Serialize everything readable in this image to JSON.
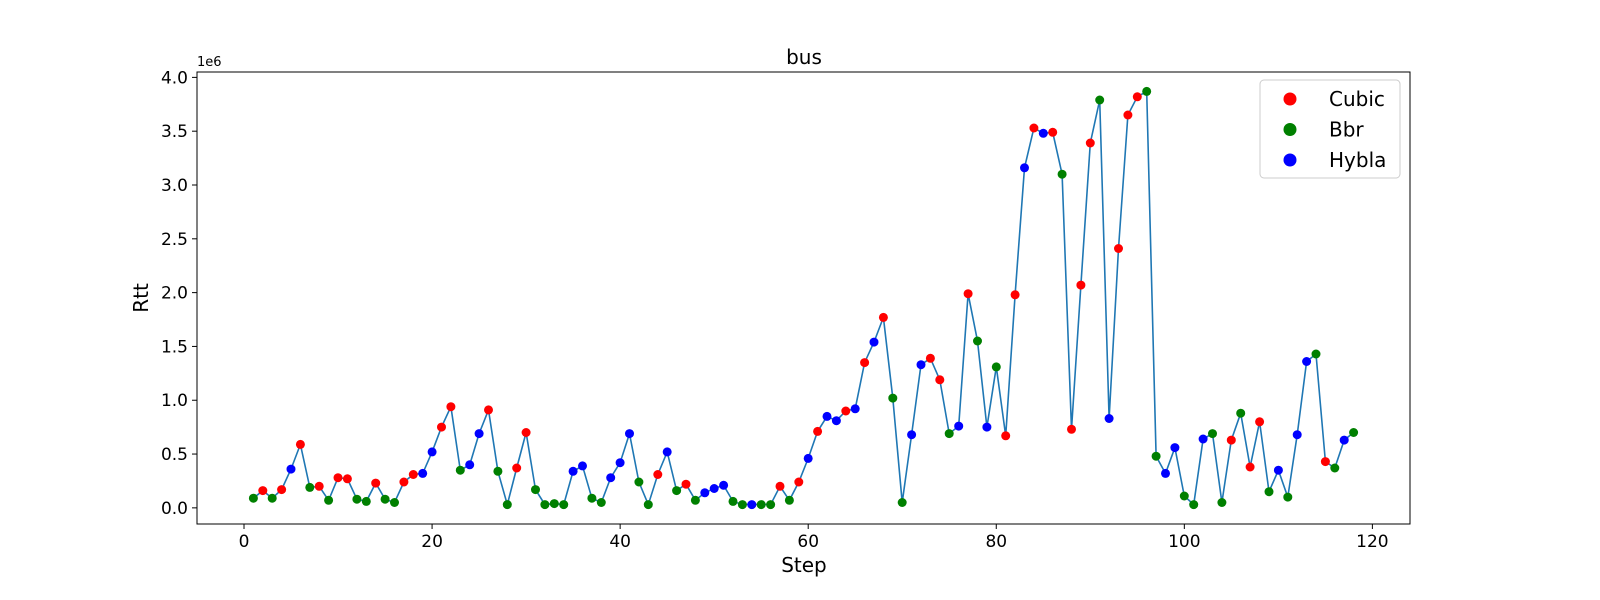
{
  "chart_data": {
    "type": "scatter",
    "title": "bus",
    "xlabel": "Step",
    "ylabel": "Rtt",
    "y_offset_text": "1e6",
    "xlim": [
      -5,
      124
    ],
    "ylim": [
      -0.15,
      4.05
    ],
    "xticks": [
      0,
      20,
      40,
      60,
      80,
      100,
      120
    ],
    "xtick_labels": [
      "0",
      "20",
      "40",
      "60",
      "80",
      "100",
      "120"
    ],
    "yticks": [
      0.0,
      0.5,
      1.0,
      1.5,
      2.0,
      2.5,
      3.0,
      3.5,
      4.0
    ],
    "ytick_labels": [
      "0.0",
      "0.5",
      "1.0",
      "1.5",
      "2.0",
      "2.5",
      "3.0",
      "3.5",
      "4.0"
    ],
    "y_units": "×1e6",
    "grid": false,
    "legend_position": "top-right",
    "line_color": "#1f77b4",
    "legend": [
      {
        "name": "Cubic",
        "color": "#ff0000"
      },
      {
        "name": "Bbr",
        "color": "#008000"
      },
      {
        "name": "Hybla",
        "color": "#0000ff"
      }
    ],
    "x": [
      1,
      2,
      3,
      4,
      5,
      6,
      7,
      8,
      9,
      10,
      11,
      12,
      13,
      14,
      15,
      16,
      17,
      18,
      19,
      20,
      21,
      22,
      23,
      24,
      25,
      26,
      27,
      28,
      29,
      30,
      31,
      32,
      33,
      34,
      35,
      36,
      37,
      38,
      39,
      40,
      41,
      42,
      43,
      44,
      45,
      46,
      47,
      48,
      49,
      50,
      51,
      52,
      53,
      54,
      55,
      56,
      57,
      58,
      59,
      60,
      61,
      62,
      63,
      64,
      65,
      66,
      67,
      68,
      69,
      70,
      71,
      72,
      73,
      74,
      75,
      76,
      77,
      78,
      79,
      80,
      81,
      82,
      83,
      84,
      85,
      86,
      87,
      88,
      89,
      90,
      91,
      92,
      93,
      94,
      95,
      96,
      97,
      98,
      99,
      100,
      101,
      102,
      103,
      104,
      105,
      106,
      107,
      108,
      109,
      110,
      111,
      112,
      113,
      114,
      115,
      116,
      117,
      118
    ],
    "y": [
      0.09,
      0.16,
      0.09,
      0.17,
      0.36,
      0.59,
      0.19,
      0.2,
      0.07,
      0.28,
      0.27,
      0.08,
      0.06,
      0.23,
      0.08,
      0.05,
      0.24,
      0.31,
      0.32,
      0.52,
      0.75,
      0.94,
      0.35,
      0.4,
      0.69,
      0.91,
      0.34,
      0.03,
      0.37,
      0.7,
      0.17,
      0.03,
      0.04,
      0.03,
      0.34,
      0.39,
      0.09,
      0.05,
      0.28,
      0.42,
      0.69,
      0.24,
      0.03,
      0.31,
      0.52,
      0.16,
      0.22,
      0.07,
      0.14,
      0.18,
      0.21,
      0.06,
      0.03,
      0.03,
      0.03,
      0.03,
      0.2,
      0.07,
      0.24,
      0.46,
      0.71,
      0.85,
      0.81,
      0.9,
      0.92,
      1.35,
      1.54,
      1.77,
      1.02,
      0.05,
      0.68,
      1.33,
      1.39,
      1.19,
      0.69,
      0.76,
      1.99,
      1.55,
      0.75,
      1.31,
      0.67,
      1.98,
      3.16,
      3.53,
      3.48,
      3.49,
      3.1,
      0.73,
      2.07,
      3.39,
      3.79,
      0.83,
      2.41,
      3.65,
      3.82,
      3.87,
      0.48,
      0.32,
      0.56,
      0.11,
      0.03,
      0.64,
      0.69,
      0.05,
      0.63,
      0.88,
      0.38,
      0.8,
      0.15,
      0.35,
      0.1,
      0.68,
      1.36,
      1.43,
      0.43,
      0.37,
      0.63,
      0.7
    ],
    "series_index": [
      1,
      0,
      1,
      0,
      2,
      0,
      1,
      0,
      1,
      0,
      0,
      1,
      1,
      0,
      1,
      1,
      0,
      0,
      2,
      2,
      0,
      0,
      1,
      2,
      2,
      0,
      1,
      1,
      0,
      0,
      1,
      1,
      1,
      1,
      2,
      2,
      1,
      1,
      2,
      2,
      2,
      1,
      1,
      0,
      2,
      1,
      0,
      1,
      2,
      2,
      2,
      1,
      1,
      2,
      1,
      1,
      0,
      1,
      0,
      2,
      0,
      2,
      2,
      0,
      2,
      0,
      2,
      0,
      1,
      1,
      2,
      2,
      0,
      0,
      1,
      2,
      0,
      1,
      2,
      1,
      0,
      0,
      2,
      0,
      2,
      0,
      1,
      0,
      0,
      0,
      1,
      2,
      0,
      0,
      0,
      1,
      1,
      2,
      2,
      1,
      1,
      2,
      1,
      1,
      0,
      1,
      0,
      0,
      1,
      2,
      1,
      2,
      2,
      1,
      0,
      1,
      2,
      1
    ]
  }
}
